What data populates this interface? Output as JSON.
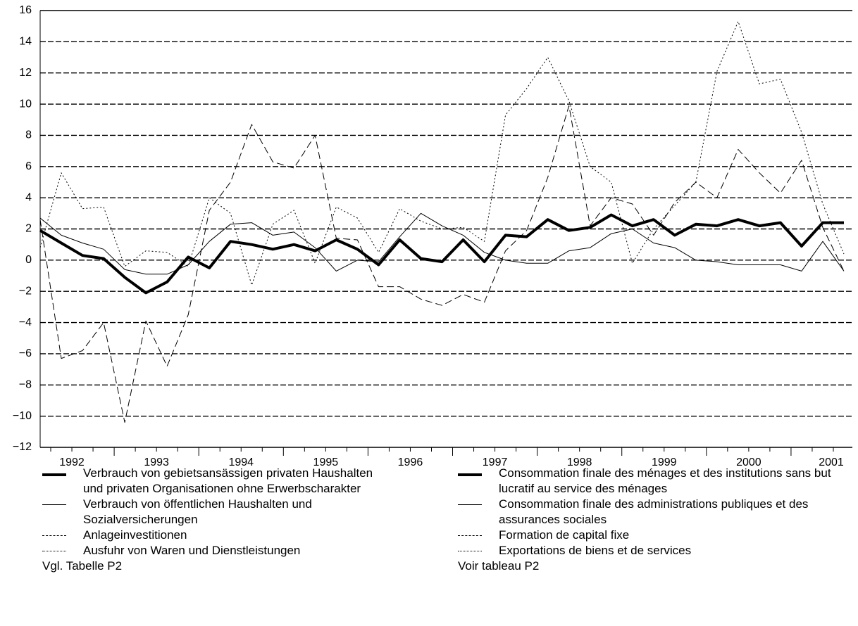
{
  "chart_data": {
    "type": "line",
    "categories": [
      null,
      "1992",
      null,
      null,
      null,
      "1993",
      null,
      null,
      null,
      "1994",
      null,
      null,
      null,
      "1995",
      null,
      null,
      null,
      "1996",
      null,
      null,
      null,
      "1997",
      null,
      null,
      null,
      "1998",
      null,
      null,
      null,
      "1999",
      null,
      null,
      null,
      "2000",
      null,
      null,
      null,
      "2001",
      null
    ],
    "ylim": [
      -12,
      16
    ],
    "yticks": [
      {
        "value": -12,
        "label": "−12"
      },
      {
        "value": -10,
        "label": "−10"
      },
      {
        "value": -8,
        "label": "−8"
      },
      {
        "value": -6,
        "label": "−6"
      },
      {
        "value": -4,
        "label": "−4"
      },
      {
        "value": -2,
        "label": "−2"
      },
      0,
      2,
      4,
      6,
      8,
      10,
      12,
      14,
      16
    ],
    "grid": true,
    "series": [
      {
        "name": "Verbrauch von gebietsansässigen privaten Haushalten und privaten Organisationen ohne Erwerbscharakter",
        "name_fr": "Consommation finale des ménages et des institutions sans but lucratif au service des ménages",
        "color": "#000000",
        "line_width": 4,
        "line_style": "solid",
        "values": [
          1.9,
          1.1,
          0.3,
          0.1,
          -1.1,
          -2.1,
          -1.4,
          0.2,
          -0.5,
          1.2,
          1.0,
          0.7,
          1.0,
          0.6,
          1.3,
          0.7,
          -0.3,
          1.3,
          0.1,
          -0.1,
          1.3,
          -0.1,
          1.6,
          1.5,
          2.6,
          1.9,
          2.1,
          2.9,
          2.2,
          2.6,
          1.6,
          2.3,
          2.2,
          2.6,
          2.2,
          2.4,
          0.9,
          2.4,
          2.4
        ]
      },
      {
        "name": "Verbrauch von öffentlichen Haushalten und Sozialversicherungen",
        "name_fr": "Consommation finale des administrations publiques et des assurances sociales",
        "color": "#000000",
        "line_width": 1,
        "line_style": "solid",
        "values": [
          2.7,
          1.6,
          1.1,
          0.7,
          -0.6,
          -0.9,
          -0.9,
          -0.3,
          1.2,
          2.3,
          2.4,
          1.6,
          1.8,
          0.8,
          -0.7,
          0.0,
          -0.1,
          1.5,
          3.0,
          2.2,
          1.6,
          0.5,
          0.0,
          -0.2,
          -0.2,
          0.6,
          0.8,
          1.7,
          2.0,
          1.1,
          0.8,
          0.0,
          -0.1,
          -0.3,
          -0.3,
          -0.3,
          -0.7,
          1.2,
          -0.7
        ]
      },
      {
        "name": "Anlageinvestitionen",
        "name_fr": "Formation de capital fixe",
        "color": "#000000",
        "line_width": 1,
        "line_style": "dashed",
        "values": [
          2.6,
          -6.3,
          -5.8,
          -4.0,
          -10.4,
          -3.9,
          -6.8,
          -3.5,
          3.2,
          5.0,
          8.7,
          6.3,
          5.9,
          8.0,
          1.4,
          1.3,
          -1.7,
          -1.7,
          -2.5,
          -2.9,
          -2.2,
          -2.7,
          0.6,
          1.9,
          5.3,
          9.9,
          2.2,
          4.0,
          3.6,
          1.6,
          3.7,
          5.0,
          4.0,
          7.1,
          5.6,
          4.3,
          6.4,
          2.1,
          -0.7
        ]
      },
      {
        "name": "Ausfuhr von Waren und Dienstleistungen",
        "name_fr": "Exportations de biens et de services",
        "color": "#000000",
        "line_width": 1,
        "line_style": "dotted",
        "values": [
          0.8,
          5.6,
          3.3,
          3.4,
          -0.4,
          0.6,
          0.5,
          -0.4,
          4.0,
          3.0,
          -1.6,
          2.3,
          3.2,
          -0.2,
          3.4,
          2.7,
          0.5,
          3.3,
          2.5,
          2.0,
          2.1,
          1.2,
          9.3,
          11.0,
          13.0,
          10.2,
          6.0,
          5.0,
          -0.2,
          2.0,
          3.5,
          5.0,
          12.1,
          15.3,
          11.3,
          11.6,
          8.2,
          3.6,
          0.4
        ]
      }
    ],
    "notes": [
      "Vgl. Tabelle P2",
      "Voir tableau P2"
    ]
  }
}
